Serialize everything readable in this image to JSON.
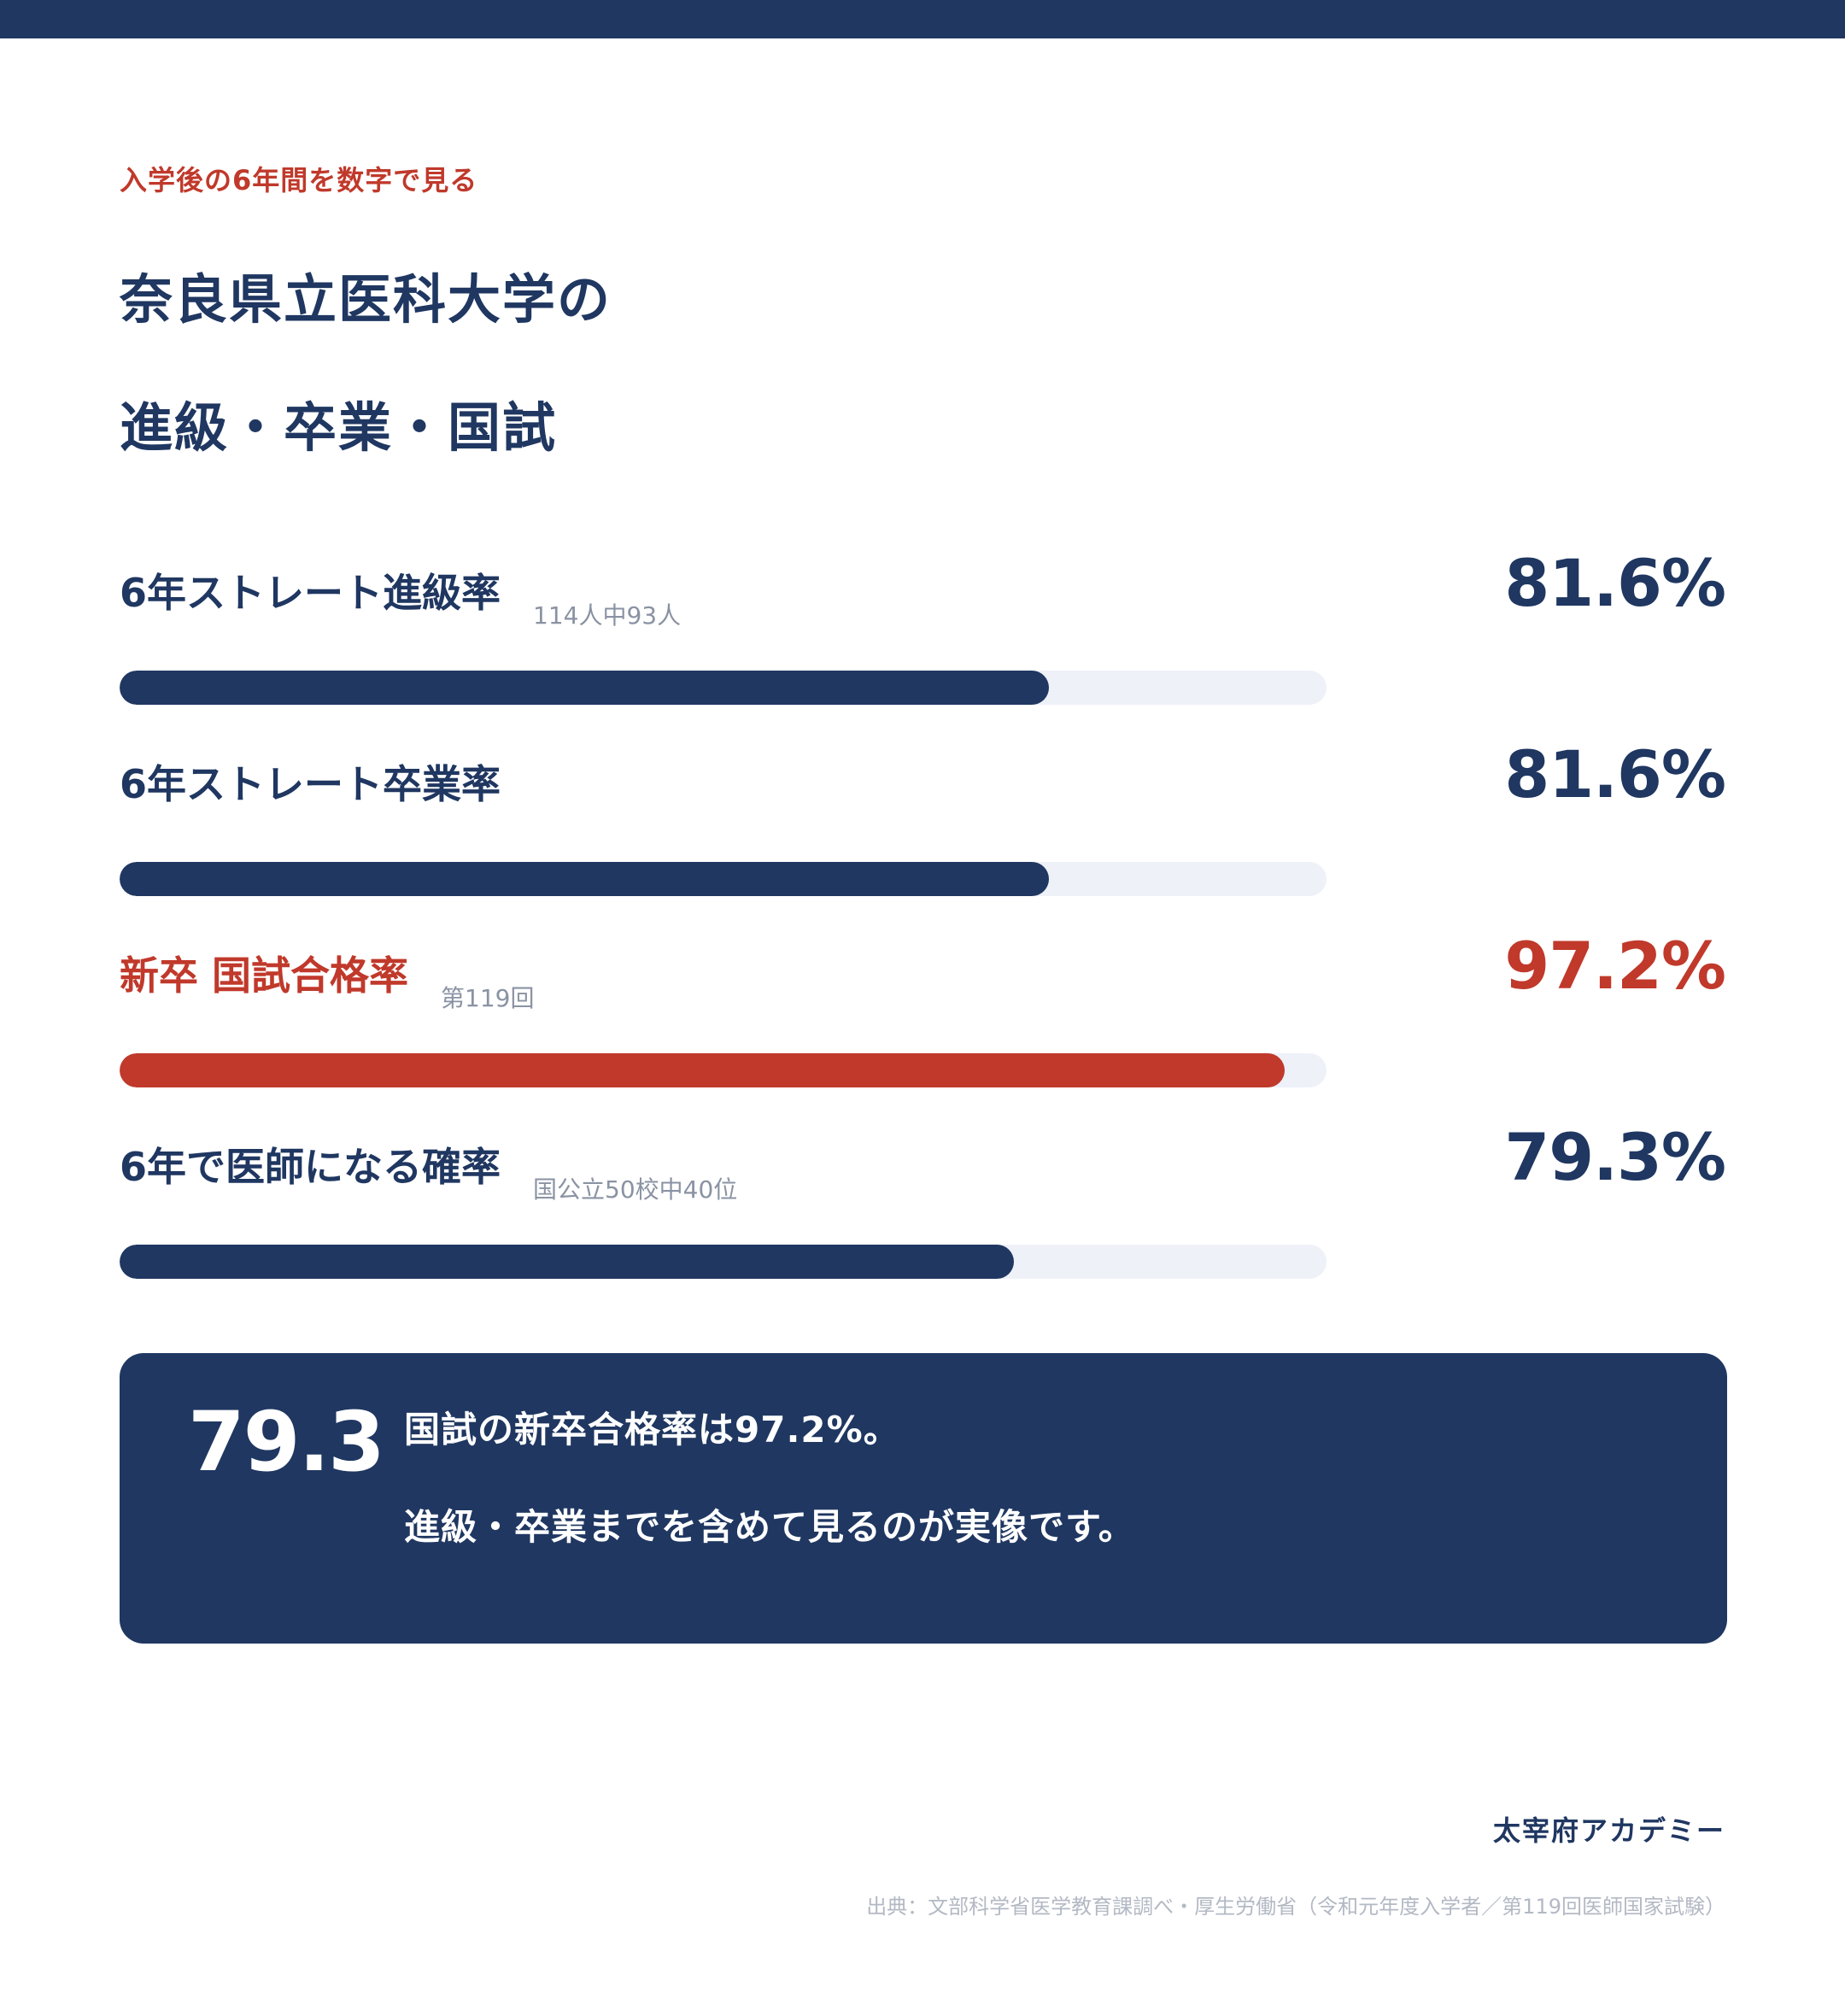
{
  "header": {
    "eyebrow": "入学後の6年間を数字で見る",
    "title_line1": "奈良県立医科大学の",
    "title_line2": "進級・卒業・国試"
  },
  "chart_data": {
    "type": "bar",
    "orientation": "horizontal",
    "categories": [
      "6年ストレート進級率",
      "6年ストレート卒業率",
      "新卒 国試合格率",
      "6年で医師になる確率"
    ],
    "notes": [
      "114人中93人",
      "",
      "第119回",
      "国公立50校中40位"
    ],
    "values": [
      81.6,
      81.6,
      97.2,
      79.3
    ],
    "value_labels": [
      "81.6%",
      "81.6%",
      "97.2%",
      "79.3%"
    ],
    "highlight_index": 2,
    "colors": {
      "primary": "#1f3761",
      "accent": "#c0392b",
      "track": "#eef1f8"
    },
    "xlim": [
      20,
      100
    ]
  },
  "summary": {
    "big_number": "79.3",
    "line1": "国試の新卒合格率は97.2%。",
    "line2": "進級・卒業までを含めて見るのが実像です。"
  },
  "footer": {
    "brand": "太宰府アカデミー",
    "source": "出典：文部科学省医学教育課調べ・厚生労働省（令和元年度入学者／第119回医師国家試験）"
  }
}
